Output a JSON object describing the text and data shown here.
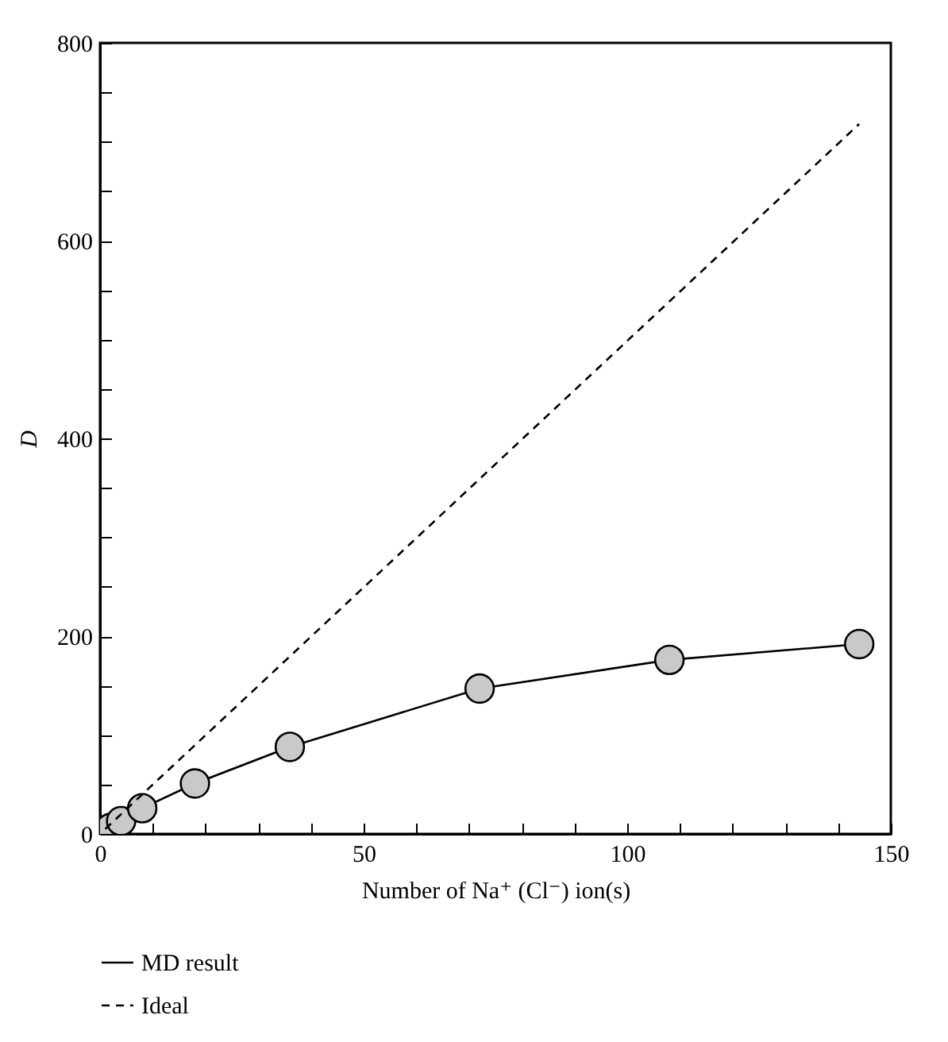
{
  "chart_data": {
    "type": "line",
    "xlabel": "Number of Na⁺ (Cl⁻) ion(s)",
    "ylabel": "D",
    "xlim": [
      0,
      150
    ],
    "ylim": [
      0,
      800
    ],
    "xticks": [
      0,
      {
        "value": 10,
        "label": null
      },
      {
        "value": 20,
        "label": null
      },
      {
        "value": 30,
        "label": null
      },
      {
        "value": 40,
        "label": null
      },
      50,
      {
        "value": 60,
        "label": null
      },
      {
        "value": 70,
        "label": null
      },
      {
        "value": 80,
        "label": null
      },
      {
        "value": 90,
        "label": null
      },
      100,
      {
        "value": 110,
        "label": null
      },
      {
        "value": 120,
        "label": null
      },
      {
        "value": 130,
        "label": null
      },
      {
        "value": 140,
        "label": null
      },
      150
    ],
    "yticks": [
      0,
      {
        "value": 50,
        "label": null
      },
      {
        "value": 100,
        "label": null
      },
      {
        "value": 150,
        "label": null
      },
      200,
      {
        "value": 250,
        "label": null
      },
      {
        "value": 300,
        "label": null
      },
      {
        "value": 350,
        "label": null
      },
      400,
      {
        "value": 450,
        "label": null
      },
      {
        "value": 500,
        "label": null
      },
      {
        "value": 550,
        "label": null
      },
      600,
      {
        "value": 650,
        "label": null
      },
      {
        "value": 700,
        "label": null
      },
      {
        "value": 750,
        "label": null
      },
      800
    ],
    "legend": "bottom left",
    "grid": false,
    "series": [
      {
        "name": "MD result",
        "color": "#c8c9cb",
        "marker": "circle",
        "line_style": "solid",
        "x": [
          1,
          2,
          4,
          8,
          18,
          36,
          72,
          108,
          144
        ],
        "values": [
          3,
          6,
          13,
          26,
          51,
          88,
          147,
          176,
          192
        ]
      },
      {
        "name": "Ideal",
        "color": "#000000",
        "line_style": "dashed",
        "x": [
          1,
          144
        ],
        "values": [
          5,
          718
        ]
      }
    ]
  }
}
